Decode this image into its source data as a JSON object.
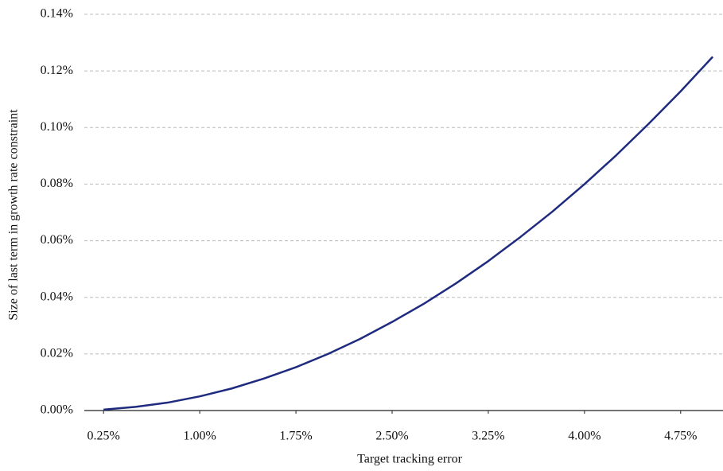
{
  "chart_data": {
    "type": "line",
    "xlabel": "Target tracking error",
    "ylabel": "Size of last term in growth rate constraint",
    "x": [
      0.25,
      0.5,
      0.75,
      1.0,
      1.25,
      1.5,
      1.75,
      2.0,
      2.25,
      2.5,
      2.75,
      3.0,
      3.25,
      3.5,
      3.75,
      4.0,
      4.25,
      4.5,
      4.75,
      5.0
    ],
    "values": [
      0.0003,
      0.0013,
      0.0028,
      0.005,
      0.0078,
      0.0113,
      0.0153,
      0.02,
      0.0253,
      0.0313,
      0.0378,
      0.045,
      0.0528,
      0.0613,
      0.0703,
      0.08,
      0.0903,
      0.1013,
      0.1128,
      0.125
    ],
    "color": "#1f2b7e",
    "xlim": [
      0.1,
      5.08
    ],
    "xticks": [
      {
        "value": 0.25,
        "label": "0.25%"
      },
      {
        "value": 1.0,
        "label": "1.00%"
      },
      {
        "value": 1.75,
        "label": "1.75%"
      },
      {
        "value": 2.5,
        "label": "2.50%"
      },
      {
        "value": 3.25,
        "label": "3.25%"
      },
      {
        "value": 4.0,
        "label": "4.00%"
      },
      {
        "value": 4.75,
        "label": "4.75%"
      }
    ],
    "ylim": [
      0,
      0.14
    ],
    "yticks": [
      {
        "value": 0,
        "label": "0.00%"
      },
      {
        "value": 0.02,
        "label": "0.02%"
      },
      {
        "value": 0.04,
        "label": "0.04%"
      },
      {
        "value": 0.06,
        "label": "0.06%"
      },
      {
        "value": 0.08,
        "label": "0.08%"
      },
      {
        "value": 0.1,
        "label": "0.10%"
      },
      {
        "value": 0.12,
        "label": "0.12%"
      },
      {
        "value": 0.14,
        "label": "0.14%"
      }
    ],
    "grid": true
  }
}
